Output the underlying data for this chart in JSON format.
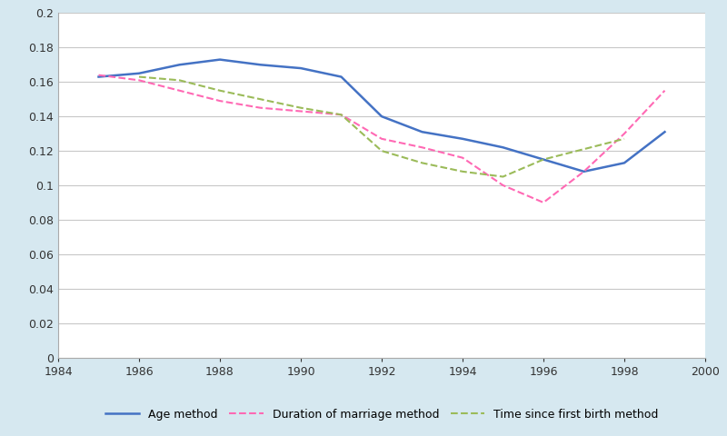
{
  "age_method": {
    "x": [
      1985,
      1986,
      1987,
      1988,
      1989,
      1990,
      1991,
      1992,
      1993,
      1994,
      1995,
      1996,
      1997,
      1998,
      1999
    ],
    "y": [
      0.163,
      0.165,
      0.17,
      0.173,
      0.17,
      0.168,
      0.163,
      0.14,
      0.131,
      0.127,
      0.122,
      0.115,
      0.108,
      0.113,
      0.131
    ],
    "color": "#4472C4",
    "linestyle": "-",
    "linewidth": 1.8,
    "label": "Age method"
  },
  "duration_method": {
    "x": [
      1985,
      1986,
      1987,
      1988,
      1989,
      1990,
      1991,
      1992,
      1993,
      1994,
      1995,
      1996,
      1997,
      1998,
      1999
    ],
    "y": [
      0.164,
      0.161,
      0.155,
      0.149,
      0.145,
      0.143,
      0.141,
      0.127,
      0.122,
      0.116,
      0.1,
      0.09,
      0.108,
      0.13,
      0.155
    ],
    "color": "#FF69B4",
    "linestyle": "--",
    "linewidth": 1.5,
    "label": "Duration of marriage method"
  },
  "firstbirth_method": {
    "x": [
      1986,
      1987,
      1988,
      1989,
      1990,
      1991,
      1992,
      1993,
      1994,
      1995,
      1996,
      1997,
      1998
    ],
    "y": [
      0.163,
      0.161,
      0.155,
      0.15,
      0.145,
      0.141,
      0.12,
      0.113,
      0.108,
      0.105,
      0.115,
      0.121,
      0.127
    ],
    "color": "#9BBB59",
    "linestyle": "--",
    "linewidth": 1.5,
    "label": "Time since first birth method"
  },
  "xlim": [
    1984,
    2000
  ],
  "ylim": [
    0,
    0.2
  ],
  "ytick_values": [
    0,
    0.02,
    0.04,
    0.06,
    0.08,
    0.1,
    0.12,
    0.14,
    0.16,
    0.18,
    0.2
  ],
  "ytick_labels": [
    "0",
    "0.02",
    "0.04",
    "0.06",
    "0.08",
    "0.1",
    "0.12",
    "0.14",
    "0.16",
    "0.18",
    "0.2"
  ],
  "xticks": [
    1984,
    1986,
    1988,
    1990,
    1992,
    1994,
    1996,
    1998,
    2000
  ],
  "background_color": "#D6E8F0",
  "plot_background_color": "#FFFFFF",
  "grid_color": "#C8C8C8",
  "spine_color": "#AAAAAA"
}
